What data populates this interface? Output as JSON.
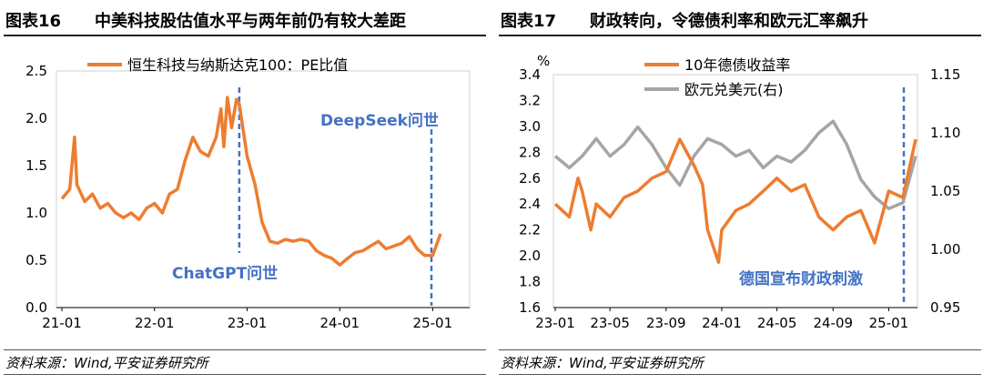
{
  "left": {
    "figure_num": "图表16",
    "title": "中美科技股估值水平与两年前仍有较大差距",
    "source": "资料来源：Wind,平安证券研究所"
  },
  "right": {
    "figure_num": "图表17",
    "title": "财政转向，令德债利率和欧元汇率飙升",
    "source": "资料来源：Wind,平安证券研究所"
  },
  "chart_data": [
    {
      "type": "line",
      "xlabel": "",
      "ylabel": "",
      "x_range": [
        "2021-01",
        "2025-02"
      ],
      "ylim": [
        0.0,
        2.5
      ],
      "y_ticks": [
        "0.0",
        "0.5",
        "1.0",
        "1.5",
        "2.0",
        "2.5"
      ],
      "x_ticks": [
        "21-01",
        "22-01",
        "23-01",
        "24-01",
        "25-01"
      ],
      "legend_position": "top-left",
      "grid": false,
      "colors": {
        "series": "#ED7D31",
        "annotation": "#4472C4"
      },
      "series": [
        {
          "name": "恒生科技与纳斯达克100：PE比值",
          "points": [
            [
              "2021-01",
              1.15
            ],
            [
              "2021-02",
              1.25
            ],
            [
              "2021-02-20",
              1.8
            ],
            [
              "2021-03",
              1.3
            ],
            [
              "2021-04",
              1.12
            ],
            [
              "2021-05",
              1.2
            ],
            [
              "2021-06",
              1.05
            ],
            [
              "2021-07",
              1.1
            ],
            [
              "2021-08",
              1.0
            ],
            [
              "2021-09",
              0.95
            ],
            [
              "2021-10",
              1.0
            ],
            [
              "2021-11",
              0.93
            ],
            [
              "2021-12",
              1.05
            ],
            [
              "2022-01",
              1.1
            ],
            [
              "2022-02",
              1.0
            ],
            [
              "2022-03",
              1.2
            ],
            [
              "2022-04",
              1.25
            ],
            [
              "2022-05",
              1.55
            ],
            [
              "2022-06",
              1.8
            ],
            [
              "2022-07",
              1.65
            ],
            [
              "2022-08",
              1.6
            ],
            [
              "2022-09",
              1.8
            ],
            [
              "2022-09-20",
              2.1
            ],
            [
              "2022-10",
              1.7
            ],
            [
              "2022-10-15",
              2.22
            ],
            [
              "2022-11",
              1.9
            ],
            [
              "2022-11-20",
              2.2
            ],
            [
              "2022-12",
              2.15
            ],
            [
              "2023-01",
              1.6
            ],
            [
              "2023-02",
              1.3
            ],
            [
              "2023-03",
              0.9
            ],
            [
              "2023-04",
              0.7
            ],
            [
              "2023-05",
              0.68
            ],
            [
              "2023-06",
              0.72
            ],
            [
              "2023-07",
              0.7
            ],
            [
              "2023-08",
              0.72
            ],
            [
              "2023-09",
              0.7
            ],
            [
              "2023-10",
              0.6
            ],
            [
              "2023-11",
              0.55
            ],
            [
              "2023-12",
              0.52
            ],
            [
              "2024-01",
              0.45
            ],
            [
              "2024-02",
              0.52
            ],
            [
              "2024-03",
              0.58
            ],
            [
              "2024-04",
              0.6
            ],
            [
              "2024-05",
              0.65
            ],
            [
              "2024-06",
              0.7
            ],
            [
              "2024-07",
              0.62
            ],
            [
              "2024-08",
              0.65
            ],
            [
              "2024-09",
              0.68
            ],
            [
              "2024-10",
              0.75
            ],
            [
              "2024-11",
              0.62
            ],
            [
              "2024-12",
              0.55
            ],
            [
              "2025-01",
              0.55
            ],
            [
              "2025-02",
              0.78
            ]
          ]
        }
      ],
      "annotations": [
        {
          "label": "ChatGPT问世",
          "x": "2022-12"
        },
        {
          "label": "DeepSeek问世",
          "x": "2025-01"
        }
      ]
    },
    {
      "type": "line",
      "xlabel": "",
      "ylabel": "%",
      "x_range": [
        "2023-01",
        "2025-03"
      ],
      "ylim": [
        1.6,
        3.4
      ],
      "y_ticks": [
        "1.6",
        "1.8",
        "2.0",
        "2.2",
        "2.4",
        "2.6",
        "2.8",
        "3.0",
        "3.2",
        "3.4"
      ],
      "y2lim": [
        0.95,
        1.15
      ],
      "y2_ticks": [
        "0.95",
        "1.00",
        "1.05",
        "1.10",
        "1.15"
      ],
      "x_ticks": [
        "23-01",
        "23-05",
        "23-09",
        "24-01",
        "24-05",
        "24-09",
        "25-01"
      ],
      "legend_position": "top-center",
      "grid": false,
      "colors": {
        "yield": "#ED7D31",
        "eurusd": "#A5A5A5",
        "annotation": "#4472C4"
      },
      "series": [
        {
          "name": "10年德债收益率",
          "axis": "left",
          "points": [
            [
              "2023-01",
              2.4
            ],
            [
              "2023-02",
              2.3
            ],
            [
              "2023-02-20",
              2.6
            ],
            [
              "2023-03",
              2.5
            ],
            [
              "2023-03-20",
              2.2
            ],
            [
              "2023-04",
              2.4
            ],
            [
              "2023-05",
              2.3
            ],
            [
              "2023-06",
              2.45
            ],
            [
              "2023-07",
              2.5
            ],
            [
              "2023-08",
              2.6
            ],
            [
              "2023-09",
              2.65
            ],
            [
              "2023-10",
              2.9
            ],
            [
              "2023-11",
              2.7
            ],
            [
              "2023-11-20",
              2.55
            ],
            [
              "2023-12",
              2.2
            ],
            [
              "2023-12-25",
              1.95
            ],
            [
              "2024-01",
              2.2
            ],
            [
              "2024-02",
              2.35
            ],
            [
              "2024-03",
              2.4
            ],
            [
              "2024-04",
              2.5
            ],
            [
              "2024-05",
              2.6
            ],
            [
              "2024-06",
              2.5
            ],
            [
              "2024-07",
              2.55
            ],
            [
              "2024-08",
              2.3
            ],
            [
              "2024-09",
              2.2
            ],
            [
              "2024-10",
              2.3
            ],
            [
              "2024-11",
              2.35
            ],
            [
              "2024-12",
              2.1
            ],
            [
              "2025-01",
              2.5
            ],
            [
              "2025-02",
              2.45
            ],
            [
              "2025-03",
              2.9
            ]
          ]
        },
        {
          "name": "欧元兑美元(右)",
          "axis": "right",
          "points": [
            [
              "2023-01",
              1.08
            ],
            [
              "2023-02",
              1.07
            ],
            [
              "2023-03",
              1.08
            ],
            [
              "2023-04",
              1.095
            ],
            [
              "2023-05",
              1.08
            ],
            [
              "2023-06",
              1.09
            ],
            [
              "2023-07",
              1.105
            ],
            [
              "2023-08",
              1.09
            ],
            [
              "2023-09",
              1.07
            ],
            [
              "2023-10",
              1.055
            ],
            [
              "2023-11",
              1.08
            ],
            [
              "2023-12",
              1.095
            ],
            [
              "2024-01",
              1.09
            ],
            [
              "2024-02",
              1.08
            ],
            [
              "2024-03",
              1.085
            ],
            [
              "2024-04",
              1.07
            ],
            [
              "2024-05",
              1.08
            ],
            [
              "2024-06",
              1.075
            ],
            [
              "2024-07",
              1.085
            ],
            [
              "2024-08",
              1.1
            ],
            [
              "2024-09",
              1.11
            ],
            [
              "2024-10",
              1.09
            ],
            [
              "2024-11",
              1.06
            ],
            [
              "2024-12",
              1.045
            ],
            [
              "2025-01",
              1.035
            ],
            [
              "2025-02",
              1.04
            ],
            [
              "2025-03",
              1.08
            ]
          ]
        }
      ],
      "annotations": [
        {
          "label": "德国宣布财政刺激",
          "x": "2025-03"
        }
      ]
    }
  ]
}
